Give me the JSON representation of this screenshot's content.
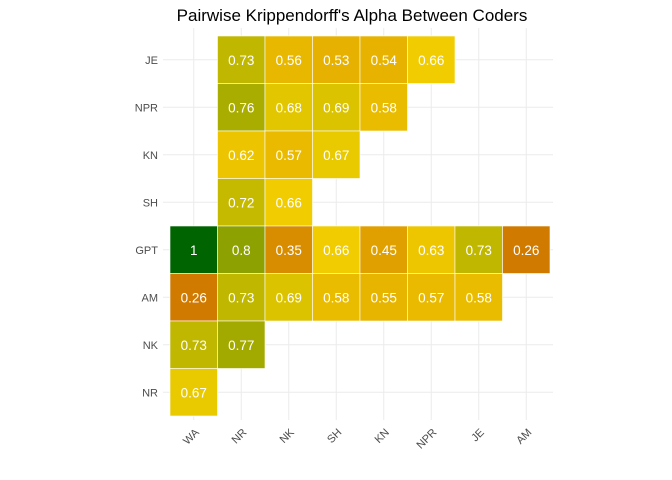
{
  "chart_data": {
    "type": "heatmap",
    "title": "Pairwise Krippendorff's Alpha Between Coders",
    "xlabel": "",
    "ylabel": "",
    "x_categories": [
      "WA",
      "NR",
      "NK",
      "SH",
      "KN",
      "NPR",
      "JE",
      "AM"
    ],
    "y_categories": [
      "JE",
      "NPR",
      "KN",
      "SH",
      "GPT",
      "AM",
      "NK",
      "NR"
    ],
    "grid": true,
    "legend": "none",
    "color_scale": {
      "low": "#d17a00",
      "mid": "#f0cc00",
      "high": "#006400",
      "domain": [
        0.26,
        0.66,
        1.0
      ]
    },
    "cells": [
      {
        "x": "NR",
        "y": "JE",
        "value": 0.73
      },
      {
        "x": "NK",
        "y": "JE",
        "value": 0.56
      },
      {
        "x": "SH",
        "y": "JE",
        "value": 0.53
      },
      {
        "x": "KN",
        "y": "JE",
        "value": 0.54
      },
      {
        "x": "NPR",
        "y": "JE",
        "value": 0.66
      },
      {
        "x": "NR",
        "y": "NPR",
        "value": 0.76
      },
      {
        "x": "NK",
        "y": "NPR",
        "value": 0.68
      },
      {
        "x": "SH",
        "y": "NPR",
        "value": 0.69
      },
      {
        "x": "KN",
        "y": "NPR",
        "value": 0.58
      },
      {
        "x": "NR",
        "y": "KN",
        "value": 0.62
      },
      {
        "x": "NK",
        "y": "KN",
        "value": 0.57
      },
      {
        "x": "SH",
        "y": "KN",
        "value": 0.67
      },
      {
        "x": "NR",
        "y": "SH",
        "value": 0.72
      },
      {
        "x": "NK",
        "y": "SH",
        "value": 0.66
      },
      {
        "x": "WA",
        "y": "GPT",
        "value": 1
      },
      {
        "x": "NR",
        "y": "GPT",
        "value": 0.8
      },
      {
        "x": "NK",
        "y": "GPT",
        "value": 0.35
      },
      {
        "x": "SH",
        "y": "GPT",
        "value": 0.66
      },
      {
        "x": "KN",
        "y": "GPT",
        "value": 0.45
      },
      {
        "x": "NPR",
        "y": "GPT",
        "value": 0.63
      },
      {
        "x": "JE",
        "y": "GPT",
        "value": 0.73
      },
      {
        "x": "AM",
        "y": "GPT",
        "value": 0.26
      },
      {
        "x": "WA",
        "y": "AM",
        "value": 0.26
      },
      {
        "x": "NR",
        "y": "AM",
        "value": 0.73
      },
      {
        "x": "NK",
        "y": "AM",
        "value": 0.69
      },
      {
        "x": "SH",
        "y": "AM",
        "value": 0.58
      },
      {
        "x": "KN",
        "y": "AM",
        "value": 0.55
      },
      {
        "x": "NPR",
        "y": "AM",
        "value": 0.57
      },
      {
        "x": "JE",
        "y": "AM",
        "value": 0.58
      },
      {
        "x": "WA",
        "y": "NK",
        "value": 0.73
      },
      {
        "x": "NR",
        "y": "NK",
        "value": 0.77
      },
      {
        "x": "WA",
        "y": "NR",
        "value": 0.67
      }
    ]
  }
}
